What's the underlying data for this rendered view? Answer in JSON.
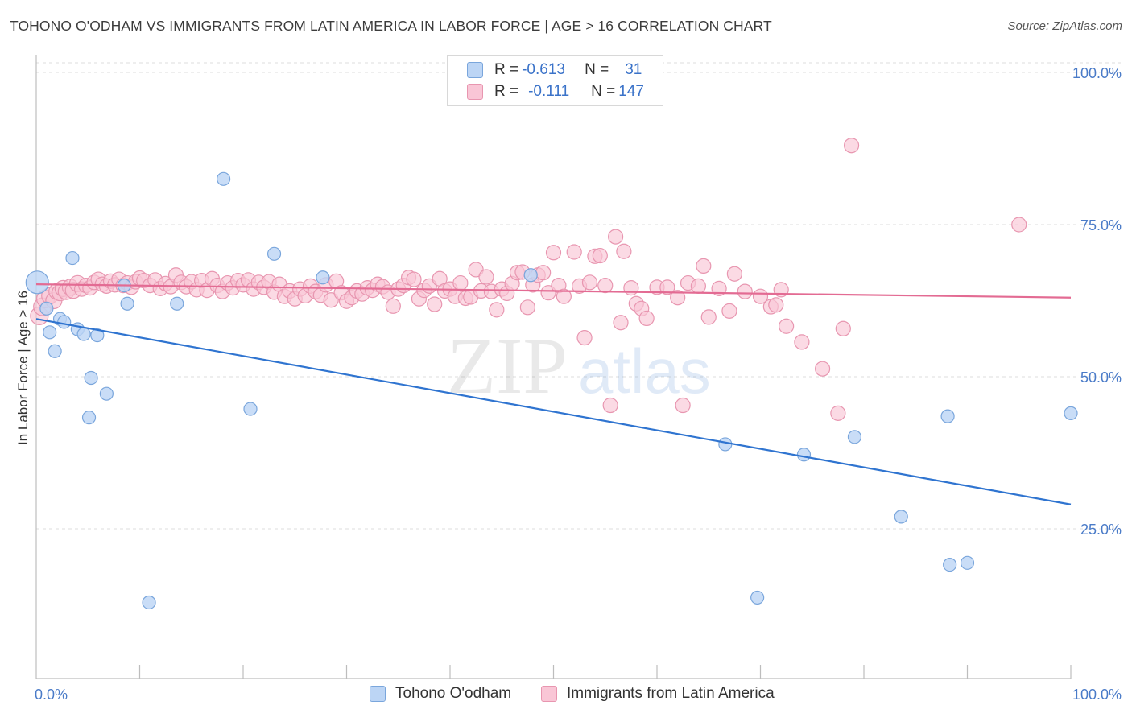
{
  "header": {
    "title": "TOHONO O'ODHAM VS IMMIGRANTS FROM LATIN AMERICA IN LABOR FORCE | AGE > 16 CORRELATION CHART",
    "source": "Source: ZipAtlas.com"
  },
  "legend": {
    "row1": {
      "r_label": "R = ",
      "r_value": "-0.613",
      "n_label": "N = ",
      "n_value": "31"
    },
    "row2": {
      "r_label": "R = ",
      "r_value": "-0.111",
      "n_label": "N = ",
      "n_value": "147"
    }
  },
  "bottom_legend": {
    "series1": "Tohono O'odham",
    "series2": "Immigrants from Latin America"
  },
  "watermark": {
    "zip": "ZIP",
    "atlas": "atlas"
  },
  "colors": {
    "blue_fill": "#bcd5f5",
    "blue_stroke": "#7aa6dc",
    "blue_line": "#2f74d0",
    "pink_fill": "#f9c6d6",
    "pink_stroke": "#e896b0",
    "pink_line": "#e36b93",
    "tick_text": "#4a7bc8"
  },
  "chart_data": {
    "type": "scatter",
    "title": "TOHONO O'ODHAM VS IMMIGRANTS FROM LATIN AMERICA IN LABOR FORCE | AGE > 16 CORRELATION CHART",
    "xlabel": "",
    "ylabel": "In Labor Force | Age > 16",
    "xlim": [
      0,
      100
    ],
    "ylim": [
      0,
      105
    ],
    "x_tick_labels": [
      "0.0%",
      "100.0%"
    ],
    "y_ticks": [
      25,
      50,
      75,
      100
    ],
    "y_tick_labels": [
      "25.0%",
      "50.0%",
      "75.0%",
      "100.0%"
    ],
    "grid": true,
    "legend_position": "top-center",
    "series": [
      {
        "name": "Tohono O'odham",
        "color": "#bcd5f5",
        "r": -0.613,
        "n": 31,
        "trend": {
          "x": [
            0,
            100
          ],
          "y": [
            59.5,
            29.0
          ]
        },
        "points": [
          [
            0.1,
            65.5
          ],
          [
            1.0,
            61.2
          ],
          [
            1.3,
            57.3
          ],
          [
            1.8,
            54.2
          ],
          [
            2.3,
            59.5
          ],
          [
            2.7,
            59.0
          ],
          [
            3.5,
            69.5
          ],
          [
            4.0,
            57.8
          ],
          [
            4.6,
            57.0
          ],
          [
            5.1,
            43.3
          ],
          [
            5.3,
            49.8
          ],
          [
            5.9,
            56.8
          ],
          [
            6.8,
            47.2
          ],
          [
            8.5,
            65.0
          ],
          [
            8.8,
            62.0
          ],
          [
            10.9,
            12.9
          ],
          [
            13.6,
            62.0
          ],
          [
            18.1,
            82.5
          ],
          [
            20.7,
            44.7
          ],
          [
            23.0,
            70.2
          ],
          [
            27.7,
            66.3
          ],
          [
            47.8,
            66.7
          ],
          [
            66.6,
            38.9
          ],
          [
            69.7,
            13.7
          ],
          [
            74.2,
            37.2
          ],
          [
            79.1,
            40.1
          ],
          [
            83.6,
            27.0
          ],
          [
            88.1,
            43.5
          ],
          [
            88.3,
            19.1
          ],
          [
            90.0,
            19.4
          ],
          [
            100.0,
            44.0
          ]
        ]
      },
      {
        "name": "Immigrants from Latin America",
        "color": "#f9c6d6",
        "r": -0.111,
        "n": 147,
        "trend": {
          "x": [
            0,
            100
          ],
          "y": [
            65.2,
            63.0
          ]
        },
        "points": [
          [
            0.3,
            60.0
          ],
          [
            0.6,
            61.5
          ],
          [
            0.9,
            62.8
          ],
          [
            1.3,
            63.3
          ],
          [
            1.7,
            62.5
          ],
          [
            2.0,
            64.0
          ],
          [
            2.3,
            63.8
          ],
          [
            2.6,
            64.5
          ],
          [
            2.9,
            64.0
          ],
          [
            3.3,
            64.7
          ],
          [
            3.6,
            64.2
          ],
          [
            4.0,
            65.3
          ],
          [
            4.4,
            64.4
          ],
          [
            4.8,
            65.0
          ],
          [
            5.2,
            64.6
          ],
          [
            5.6,
            65.5
          ],
          [
            6.0,
            66.0
          ],
          [
            6.4,
            65.2
          ],
          [
            6.8,
            64.9
          ],
          [
            7.2,
            65.7
          ],
          [
            7.6,
            65.1
          ],
          [
            8.0,
            66.0
          ],
          [
            8.4,
            65.0
          ],
          [
            8.8,
            65.4
          ],
          [
            9.2,
            64.7
          ],
          [
            9.6,
            65.6
          ],
          [
            10.0,
            66.2
          ],
          [
            10.4,
            65.8
          ],
          [
            11.0,
            65.0
          ],
          [
            11.5,
            65.9
          ],
          [
            12.0,
            64.5
          ],
          [
            12.5,
            65.3
          ],
          [
            13.0,
            64.8
          ],
          [
            13.5,
            66.7
          ],
          [
            14.0,
            65.5
          ],
          [
            14.5,
            64.8
          ],
          [
            15.0,
            65.6
          ],
          [
            15.5,
            64.3
          ],
          [
            16.0,
            65.8
          ],
          [
            16.5,
            64.2
          ],
          [
            17.0,
            66.1
          ],
          [
            17.5,
            65.0
          ],
          [
            18.0,
            64.0
          ],
          [
            18.5,
            65.4
          ],
          [
            19.0,
            64.6
          ],
          [
            19.5,
            65.8
          ],
          [
            20.0,
            65.1
          ],
          [
            20.5,
            65.9
          ],
          [
            21.0,
            64.4
          ],
          [
            21.5,
            65.5
          ],
          [
            22.0,
            64.7
          ],
          [
            22.5,
            65.6
          ],
          [
            23.0,
            63.9
          ],
          [
            23.5,
            65.2
          ],
          [
            24.0,
            63.2
          ],
          [
            24.5,
            64.1
          ],
          [
            25.0,
            62.8
          ],
          [
            25.5,
            64.4
          ],
          [
            26.0,
            63.3
          ],
          [
            26.5,
            64.9
          ],
          [
            27.0,
            64.0
          ],
          [
            27.5,
            63.4
          ],
          [
            28.0,
            65.1
          ],
          [
            28.5,
            62.6
          ],
          [
            29.0,
            65.7
          ],
          [
            29.5,
            63.8
          ],
          [
            30.0,
            62.4
          ],
          [
            30.5,
            63.0
          ],
          [
            31.0,
            64.1
          ],
          [
            31.5,
            63.6
          ],
          [
            32.0,
            64.6
          ],
          [
            32.5,
            64.2
          ],
          [
            33.0,
            65.2
          ],
          [
            33.5,
            64.8
          ],
          [
            34.0,
            63.9
          ],
          [
            34.5,
            61.6
          ],
          [
            35.0,
            64.4
          ],
          [
            35.5,
            65.0
          ],
          [
            36.0,
            66.3
          ],
          [
            36.5,
            66.0
          ],
          [
            37.0,
            62.8
          ],
          [
            37.5,
            64.2
          ],
          [
            38.0,
            64.9
          ],
          [
            38.5,
            61.9
          ],
          [
            39.0,
            66.1
          ],
          [
            39.5,
            64.1
          ],
          [
            40.0,
            64.4
          ],
          [
            40.5,
            63.2
          ],
          [
            41.0,
            65.4
          ],
          [
            41.5,
            62.9
          ],
          [
            42.0,
            63.1
          ],
          [
            42.5,
            67.6
          ],
          [
            43.0,
            64.1
          ],
          [
            43.5,
            66.4
          ],
          [
            44.0,
            64.0
          ],
          [
            44.5,
            61.0
          ],
          [
            45.0,
            64.4
          ],
          [
            45.5,
            63.7
          ],
          [
            46.0,
            65.3
          ],
          [
            46.5,
            67.1
          ],
          [
            47.0,
            67.2
          ],
          [
            47.5,
            61.4
          ],
          [
            48.0,
            65.1
          ],
          [
            48.5,
            66.7
          ],
          [
            49.0,
            67.1
          ],
          [
            49.5,
            63.8
          ],
          [
            50.0,
            70.4
          ],
          [
            50.5,
            65.0
          ],
          [
            51.0,
            63.2
          ],
          [
            52.0,
            70.5
          ],
          [
            52.5,
            64.9
          ],
          [
            53.0,
            56.4
          ],
          [
            53.5,
            65.5
          ],
          [
            54.0,
            69.8
          ],
          [
            54.5,
            69.9
          ],
          [
            55.0,
            65.0
          ],
          [
            55.5,
            45.3
          ],
          [
            56.0,
            73.0
          ],
          [
            56.5,
            58.9
          ],
          [
            56.8,
            70.6
          ],
          [
            57.5,
            64.6
          ],
          [
            58.0,
            62.0
          ],
          [
            58.5,
            61.2
          ],
          [
            59.0,
            59.6
          ],
          [
            60.0,
            64.7
          ],
          [
            61.0,
            64.7
          ],
          [
            62.0,
            63.0
          ],
          [
            62.5,
            45.3
          ],
          [
            63.0,
            65.4
          ],
          [
            64.0,
            64.9
          ],
          [
            64.5,
            68.2
          ],
          [
            65.0,
            59.8
          ],
          [
            66.0,
            64.5
          ],
          [
            67.0,
            60.8
          ],
          [
            67.5,
            66.9
          ],
          [
            68.5,
            64.0
          ],
          [
            70.0,
            63.2
          ],
          [
            71.0,
            61.5
          ],
          [
            72.0,
            64.3
          ],
          [
            72.5,
            58.3
          ],
          [
            74.0,
            55.7
          ],
          [
            76.0,
            51.3
          ],
          [
            77.5,
            44.0
          ],
          [
            78.0,
            57.9
          ],
          [
            78.8,
            88.0
          ],
          [
            95.0,
            75.0
          ],
          [
            71.5,
            61.8
          ]
        ]
      }
    ]
  }
}
